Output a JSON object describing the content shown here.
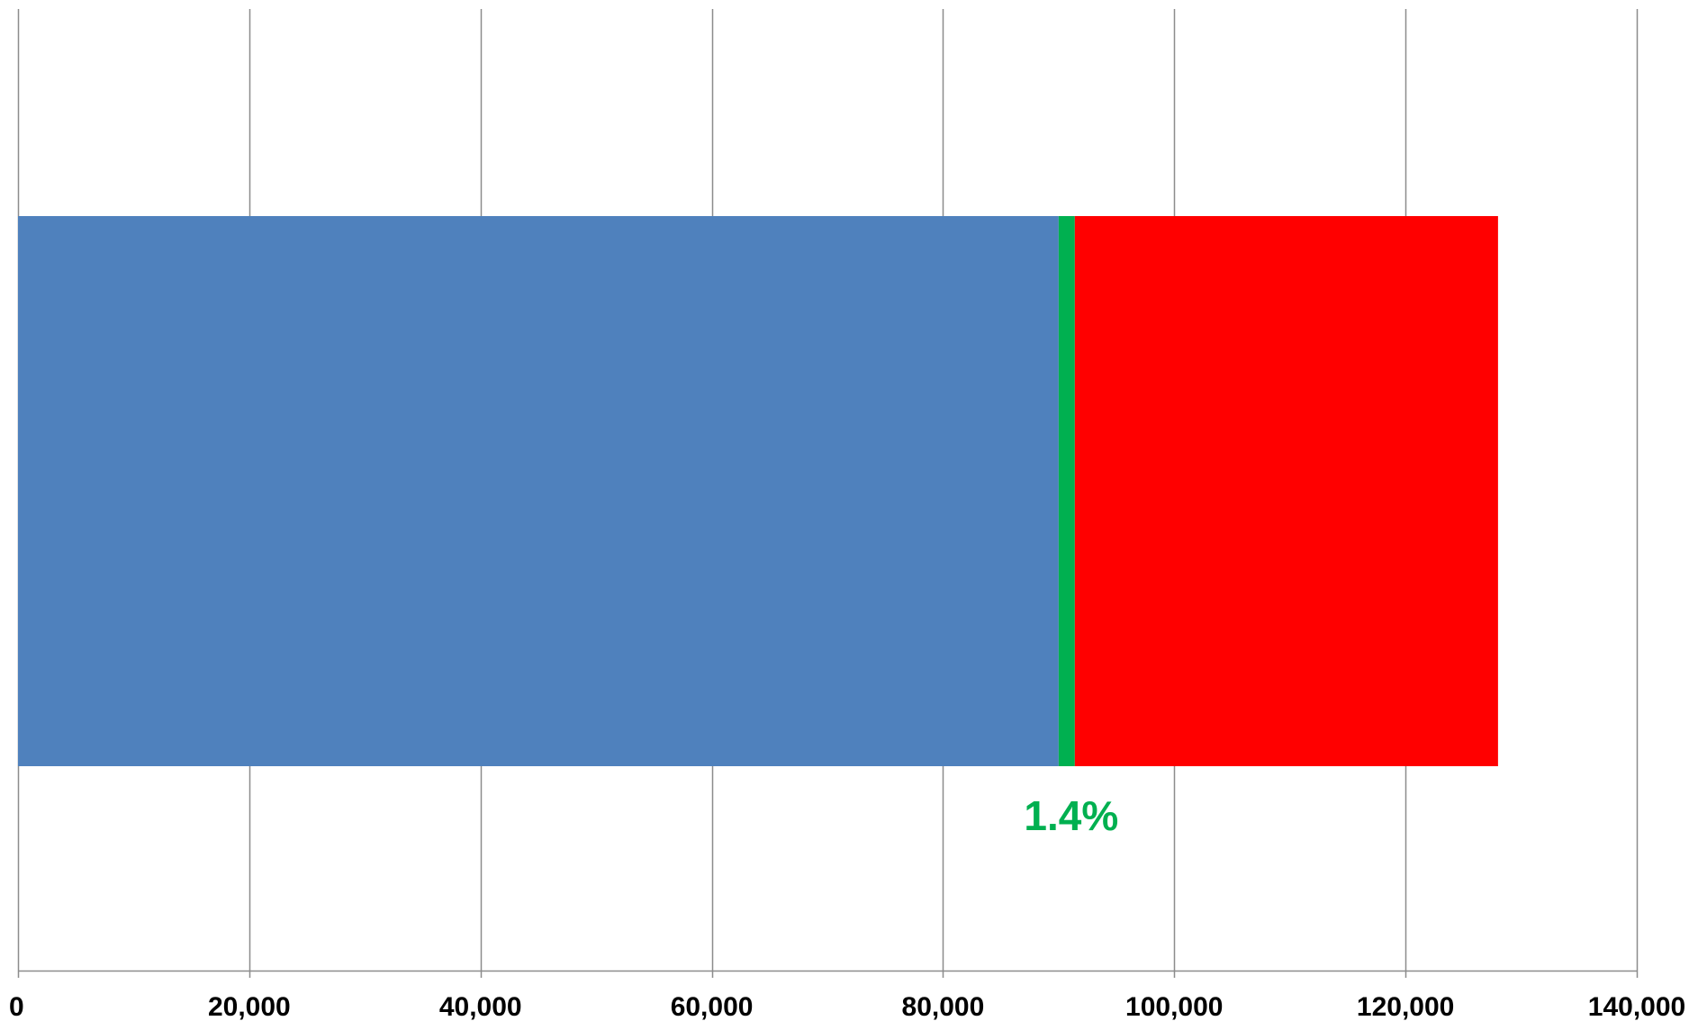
{
  "chart_data": {
    "type": "bar",
    "orientation": "horizontal",
    "stacked": true,
    "categories": [
      ""
    ],
    "series": [
      {
        "values": [
          90000
        ],
        "color": "#4F81BD"
      },
      {
        "values": [
          1400
        ],
        "color": "#00B050"
      },
      {
        "values": [
          36600
        ],
        "color": "#FF0000"
      }
    ],
    "xlim": [
      0,
      140000
    ],
    "xticks": [
      0,
      20000,
      40000,
      60000,
      80000,
      100000,
      120000,
      140000
    ],
    "xtick_labels": [
      "0",
      "20,000",
      "40,000",
      "60,000",
      "80,000",
      "100,000",
      "120,000",
      "140,000"
    ],
    "grid": true,
    "legend": "none",
    "annotations": [
      {
        "text": "1.4%",
        "x": 91400,
        "color": "#00B050"
      }
    ],
    "title": "",
    "xlabel": "",
    "ylabel": ""
  },
  "colors": {
    "grid": "#8C8C8C",
    "axis_text": "#000000"
  }
}
